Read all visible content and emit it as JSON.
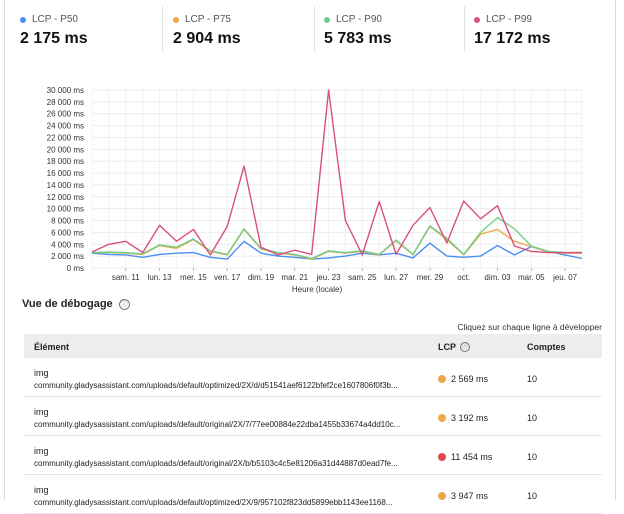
{
  "stats": [
    {
      "label": "LCP - P50",
      "value": "2 175 ms",
      "color": "#4a8ff0"
    },
    {
      "label": "LCP - P75",
      "value": "2 904 ms",
      "color": "#f0a94a"
    },
    {
      "label": "LCP - P90",
      "value": "5 783 ms",
      "color": "#6fcf8a"
    },
    {
      "label": "LCP - P99",
      "value": "17 172 ms",
      "color": "#d9507c"
    }
  ],
  "chart_data": {
    "type": "line",
    "xlabel": "Heure (locale)",
    "ylabel": "",
    "ylim": [
      0,
      30000
    ],
    "y_ticks": [
      "0 ms",
      "2 000 ms",
      "4 000 ms",
      "6 000 ms",
      "8 000 ms",
      "10 000 ms",
      "12 000 ms",
      "14 000 ms",
      "16 000 ms",
      "18 000 ms",
      "20 000 ms",
      "22 000 ms",
      "24 000 ms",
      "26 000 ms",
      "28 000 ms",
      "30 000 ms"
    ],
    "x_tick_labels": [
      "sam. 11",
      "lun. 13",
      "mer. 15",
      "ven. 17",
      "dim. 19",
      "mar. 21",
      "jeu. 23",
      "sam. 25",
      "lun. 27",
      "mer. 29",
      "oct.",
      "dim. 03",
      "mar. 05",
      "jeu. 07"
    ],
    "x_tick_index": [
      2,
      4,
      6,
      8,
      10,
      12,
      14,
      16,
      18,
      20,
      22,
      24,
      26,
      28
    ],
    "n_points": 30,
    "grid": true,
    "series": [
      {
        "name": "LCP - P50",
        "color": "#4a8ff0",
        "values": [
          2500,
          2300,
          2200,
          1800,
          2300,
          2500,
          2600,
          1800,
          1500,
          4500,
          2500,
          2000,
          1800,
          1500,
          1700,
          2000,
          2500,
          2200,
          2500,
          1700,
          4200,
          2000,
          1800,
          2000,
          3800,
          2200,
          3600,
          2800,
          2200,
          1600
        ]
      },
      {
        "name": "LCP - P75",
        "color": "#f0a94a",
        "values": [
          2600,
          2600,
          2500,
          2300,
          3800,
          3300,
          4800,
          2800,
          2200,
          6500,
          3200,
          2500,
          2200,
          1500,
          2800,
          2500,
          2800,
          2200,
          4600,
          2200,
          7000,
          4800,
          2200,
          5700,
          6500,
          4500,
          3600,
          2700,
          2500,
          2500
        ]
      },
      {
        "name": "LCP - P90",
        "color": "#6fcf8a",
        "values": [
          2600,
          2700,
          2600,
          2400,
          3900,
          3500,
          4900,
          2900,
          2300,
          6600,
          3300,
          2600,
          2300,
          1600,
          2900,
          2600,
          2900,
          2300,
          4700,
          2300,
          7100,
          5000,
          2300,
          6000,
          8500,
          6600,
          3700,
          2800,
          2600,
          2600
        ]
      },
      {
        "name": "LCP - P99",
        "color": "#d9507c",
        "values": [
          2700,
          4000,
          4500,
          2600,
          7200,
          4500,
          6500,
          2200,
          7000,
          17172,
          3500,
          2200,
          3000,
          2300,
          30000,
          8000,
          2200,
          11200,
          2300,
          7200,
          10200,
          4200,
          11300,
          8300,
          10500,
          3700,
          2800,
          2600,
          2600,
          2600
        ]
      }
    ]
  },
  "debug": {
    "title": "Vue de débogage",
    "info_icon": "ⓘ",
    "hint": "Cliquez sur chaque ligne à développer",
    "col_element": "Élément",
    "col_lcp": "LCP",
    "col_count": "Comptes",
    "rows": [
      {
        "type": "img",
        "url": "community.gladysassistant.com/uploads/default/optimized/2X/d/d51541aef6122bfef2ce1607806f0f3b...",
        "lcp": "2 569 ms",
        "color": "#f0a94a",
        "count": "10"
      },
      {
        "type": "img",
        "url": "community.gladysassistant.com/uploads/default/original/2X/7/77ee00884e22dba1455b33674a4dd10c...",
        "lcp": "3 192 ms",
        "color": "#f0a94a",
        "count": "10"
      },
      {
        "type": "img",
        "url": "community.gladysassistant.com/uploads/default/original/2X/b/b5103c4c5e81206a31d44887d0ead7fe...",
        "lcp": "11 454 ms",
        "color": "#e0484d",
        "count": "10"
      },
      {
        "type": "img",
        "url": "community.gladysassistant.com/uploads/default/optimized/2X/9/957102f823dd5899ebb1143ee1168...",
        "lcp": "3 947 ms",
        "color": "#f0a94a",
        "count": "10"
      }
    ]
  }
}
